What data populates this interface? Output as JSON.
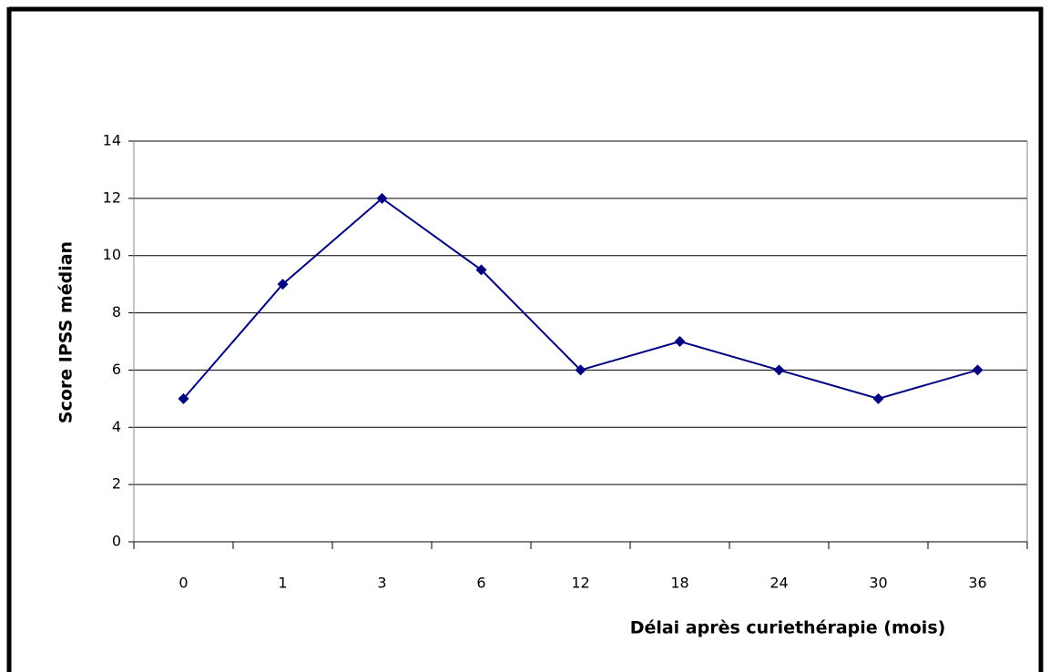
{
  "chart_data": {
    "type": "line",
    "x_label": "Délai après curiethérapie (mois)",
    "y_label": "Score IPSS médian",
    "categories": [
      "0",
      "1",
      "3",
      "6",
      "12",
      "18",
      "24",
      "30",
      "36"
    ],
    "values": [
      5,
      9,
      12,
      9.5,
      6,
      7,
      6,
      5,
      6
    ],
    "color": "#000080",
    "ylim": [
      0,
      14
    ],
    "yticks": [
      0,
      2,
      4,
      6,
      8,
      10,
      12,
      14
    ],
    "grid": true
  }
}
